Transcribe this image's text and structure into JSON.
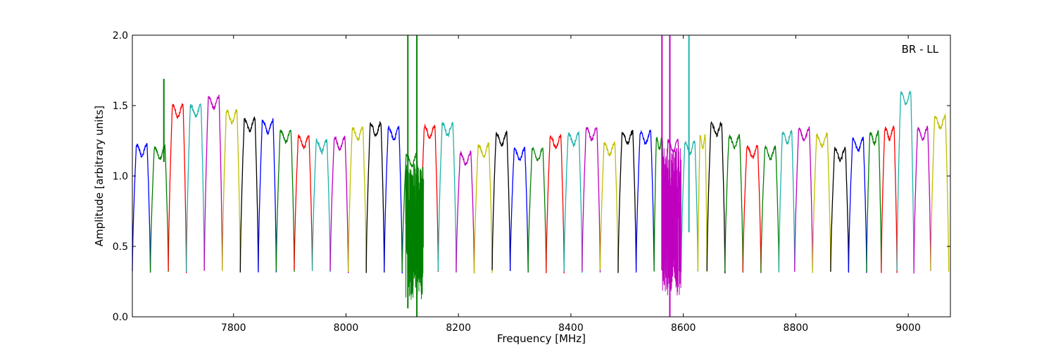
{
  "chart_data": {
    "type": "line",
    "xlabel": "Frequency [MHz]",
    "ylabel": "Amplitude [arbitrary units]",
    "annotation": "BR - LL",
    "annotation_position": "top-right",
    "xlim": [
      7620,
      9075
    ],
    "ylim": [
      0.0,
      2.0
    ],
    "xticks": [
      {
        "value": 7800,
        "label": "7800"
      },
      {
        "value": 8000,
        "label": "8000"
      },
      {
        "value": 8200,
        "label": "8200"
      },
      {
        "value": 8400,
        "label": "8400"
      },
      {
        "value": 8600,
        "label": "8600"
      },
      {
        "value": 8800,
        "label": "8800"
      },
      {
        "value": 9000,
        "label": "9000"
      }
    ],
    "yticks": [
      {
        "value": 0.0,
        "label": "0.0"
      },
      {
        "value": 0.5,
        "label": "0.5"
      },
      {
        "value": 1.0,
        "label": "1.0"
      },
      {
        "value": 1.5,
        "label": "1.5"
      },
      {
        "value": 2.0,
        "label": "2.0"
      }
    ],
    "grid": false,
    "legend": false,
    "colors": {
      "blue": "#0000ff",
      "green": "#008000",
      "red": "#ff0000",
      "cyan": "#20b2aa",
      "magenta": "#bf00bf",
      "olive": "#bfbf00",
      "black": "#000000",
      "gray": "#bbbbbb"
    },
    "channel_width_mhz": 32,
    "channels": [
      {
        "start": 7620,
        "color": "blue",
        "peak": 1.22
      },
      {
        "start": 7652,
        "color": "green",
        "peak": 1.2
      },
      {
        "start": 7684,
        "color": "red",
        "peak": 1.5
      },
      {
        "start": 7716,
        "color": "cyan",
        "peak": 1.5
      },
      {
        "start": 7748,
        "color": "magenta",
        "peak": 1.56
      },
      {
        "start": 7780,
        "color": "olive",
        "peak": 1.46
      },
      {
        "start": 7812,
        "color": "black",
        "peak": 1.4
      },
      {
        "start": 7844,
        "color": "blue",
        "peak": 1.39
      },
      {
        "start": 7876,
        "color": "green",
        "peak": 1.32
      },
      {
        "start": 7908,
        "color": "red",
        "peak": 1.28
      },
      {
        "start": 7940,
        "color": "cyan",
        "peak": 1.25
      },
      {
        "start": 7972,
        "color": "magenta",
        "peak": 1.27
      },
      {
        "start": 8004,
        "color": "olive",
        "peak": 1.34
      },
      {
        "start": 8036,
        "color": "black",
        "peak": 1.37
      },
      {
        "start": 8068,
        "color": "blue",
        "peak": 1.34
      },
      {
        "start": 8100,
        "color": "green",
        "peak": 1.15
      },
      {
        "start": 8132,
        "color": "red",
        "peak": 1.35
      },
      {
        "start": 8164,
        "color": "cyan",
        "peak": 1.37
      },
      {
        "start": 8196,
        "color": "magenta",
        "peak": 1.16
      },
      {
        "start": 8228,
        "color": "olive",
        "peak": 1.22
      },
      {
        "start": 8260,
        "color": "black",
        "peak": 1.3
      },
      {
        "start": 8292,
        "color": "blue",
        "peak": 1.19
      },
      {
        "start": 8324,
        "color": "green",
        "peak": 1.19
      },
      {
        "start": 8356,
        "color": "red",
        "peak": 1.28
      },
      {
        "start": 8388,
        "color": "cyan",
        "peak": 1.3
      },
      {
        "start": 8420,
        "color": "magenta",
        "peak": 1.34
      },
      {
        "start": 8452,
        "color": "olive",
        "peak": 1.23
      },
      {
        "start": 8484,
        "color": "black",
        "peak": 1.31
      },
      {
        "start": 8516,
        "color": "blue",
        "peak": 1.31
      },
      {
        "start": 8548,
        "color": "green",
        "peak": 1.27
      },
      {
        "start": 8566,
        "color": "magenta",
        "peak": 1.25
      },
      {
        "start": 8596,
        "color": "cyan",
        "peak": 1.24
      },
      {
        "start": 8626,
        "color": "olive",
        "peak": 1.28
      },
      {
        "start": 8642,
        "color": "black",
        "peak": 1.37
      },
      {
        "start": 8674,
        "color": "green",
        "peak": 1.28
      },
      {
        "start": 8706,
        "color": "red",
        "peak": 1.21
      },
      {
        "start": 8738,
        "color": "green",
        "peak": 1.2
      },
      {
        "start": 8770,
        "color": "cyan",
        "peak": 1.31
      },
      {
        "start": 8798,
        "color": "magenta",
        "peak": 1.33
      },
      {
        "start": 8830,
        "color": "olive",
        "peak": 1.29
      },
      {
        "start": 8862,
        "color": "black",
        "peak": 1.19
      },
      {
        "start": 8894,
        "color": "blue",
        "peak": 1.26
      },
      {
        "start": 8926,
        "color": "green",
        "peak": 1.31
      },
      {
        "start": 8952,
        "color": "red",
        "peak": 1.34
      },
      {
        "start": 8980,
        "color": "cyan",
        "peak": 1.59
      },
      {
        "start": 9010,
        "color": "magenta",
        "peak": 1.34
      },
      {
        "start": 9040,
        "color": "olive",
        "peak": 1.42
      }
    ],
    "rfi_spikes": [
      {
        "x": 8110,
        "ymin": 0.06,
        "ymax": 2.0,
        "color": "green"
      },
      {
        "x": 8126,
        "ymin": 0.0,
        "ymax": 2.0,
        "color": "green"
      },
      {
        "x": 8562,
        "ymin": 0.33,
        "ymax": 2.0,
        "color": "magenta"
      },
      {
        "x": 8576,
        "ymin": 0.0,
        "ymax": 2.0,
        "color": "magenta"
      },
      {
        "x": 8610,
        "ymin": 0.6,
        "ymax": 2.0,
        "color": "cyan"
      },
      {
        "x": 7676,
        "ymin": 1.1,
        "ymax": 1.69,
        "color": "green"
      }
    ],
    "noisy_regions": [
      {
        "xmin": 8106,
        "xmax": 8138,
        "ymin": 0.12,
        "ymax": 1.1,
        "color": "green"
      },
      {
        "xmin": 8562,
        "xmax": 8596,
        "ymin": 0.15,
        "ymax": 1.2,
        "color": "magenta"
      }
    ]
  }
}
